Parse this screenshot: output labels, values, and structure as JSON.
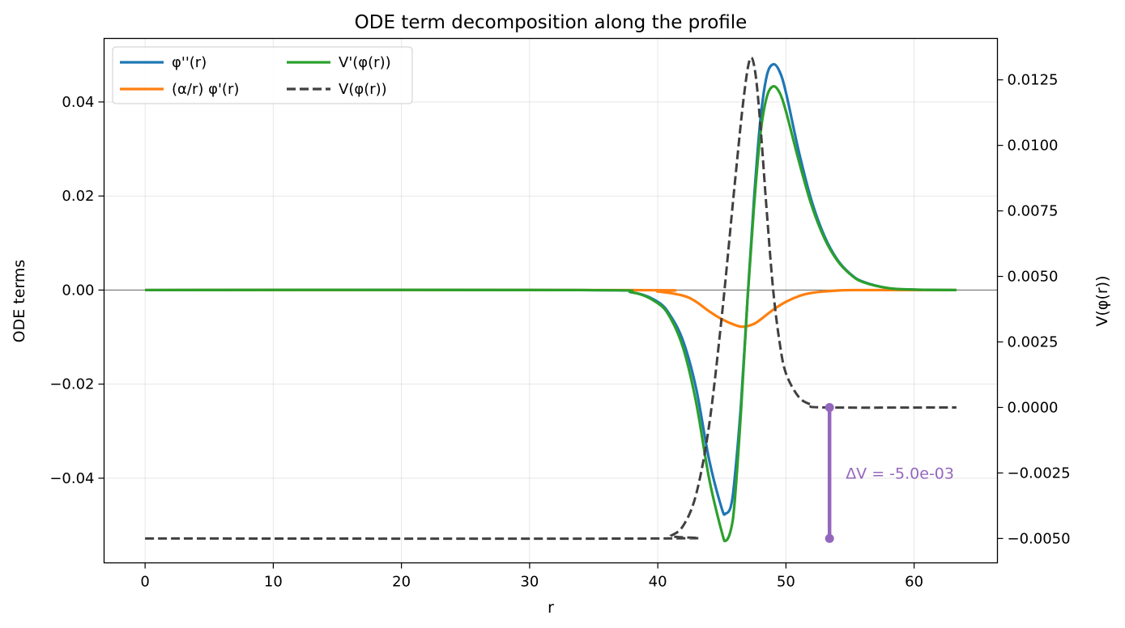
{
  "chart_data": {
    "type": "line",
    "title": "ODE term decomposition along the profile",
    "xlabel": "r",
    "ylabel_left": "ODE terms",
    "ylabel_right": "V(φ(r))",
    "xlim": [
      -3.2,
      66.5
    ],
    "ylim_left": [
      -0.058,
      0.0535
    ],
    "ylim_right": [
      -0.00593,
      0.01408
    ],
    "x_ticks": [
      0,
      10,
      20,
      30,
      40,
      50,
      60
    ],
    "x_tick_labels": [
      "0",
      "10",
      "20",
      "30",
      "40",
      "50",
      "60"
    ],
    "y_left_ticks": [
      0.04,
      0.02,
      0.0,
      -0.02,
      -0.04
    ],
    "y_left_tick_labels": [
      "0.04",
      "0.02",
      "0.00",
      "−0.02",
      "−0.04"
    ],
    "y_right_ticks": [
      0.0125,
      0.01,
      0.0075,
      0.005,
      0.0025,
      0.0,
      -0.0025,
      -0.005
    ],
    "y_right_tick_labels": [
      "0.0125",
      "0.0100",
      "0.0075",
      "0.0050",
      "0.0025",
      "0.0000",
      "−0.0025",
      "−0.0050"
    ],
    "grid": true,
    "legend_position": "top-left",
    "legend_columns": 2,
    "series": [
      {
        "name": "φ''(r)",
        "axis": "left",
        "color": "#1f77b4",
        "style": "solid",
        "points": [
          [
            0,
            0
          ],
          [
            34,
            0
          ],
          [
            38,
            -0.0005
          ],
          [
            40,
            -0.0025
          ],
          [
            41,
            -0.0055
          ],
          [
            42,
            -0.011
          ],
          [
            43,
            -0.021
          ],
          [
            44,
            -0.036
          ],
          [
            45,
            -0.0465
          ],
          [
            45.3,
            -0.0475
          ],
          [
            45.7,
            -0.046
          ],
          [
            46,
            -0.04
          ],
          [
            46.5,
            -0.024
          ],
          [
            47,
            -0.002
          ],
          [
            47.5,
            0.019
          ],
          [
            48,
            0.036
          ],
          [
            48.5,
            0.0455
          ],
          [
            49,
            0.048
          ],
          [
            49.5,
            0.0465
          ],
          [
            50,
            0.042
          ],
          [
            51,
            0.0295
          ],
          [
            52,
            0.019
          ],
          [
            53,
            0.0115
          ],
          [
            54,
            0.0065
          ],
          [
            55,
            0.0035
          ],
          [
            56,
            0.0018
          ],
          [
            58,
            0.0004
          ],
          [
            60,
            0.0001
          ],
          [
            63.3,
            0
          ]
        ]
      },
      {
        "name": "(α/r) φ'(r)",
        "axis": "left",
        "color": "#ff7f0e",
        "style": "solid",
        "points": [
          [
            0,
            0
          ],
          [
            38,
            0
          ],
          [
            40,
            -0.0003
          ],
          [
            42,
            -0.0012
          ],
          [
            43,
            -0.0025
          ],
          [
            44,
            -0.0045
          ],
          [
            45,
            -0.0062
          ],
          [
            46,
            -0.0074
          ],
          [
            46.7,
            -0.0078
          ],
          [
            47.5,
            -0.0072
          ],
          [
            48,
            -0.0063
          ],
          [
            49,
            -0.0042
          ],
          [
            50,
            -0.0025
          ],
          [
            51,
            -0.0013
          ],
          [
            52,
            -0.0006
          ],
          [
            54,
            -0.0001
          ],
          [
            56,
            0
          ],
          [
            63.3,
            0
          ]
        ]
      },
      {
        "name": "V'(φ(r))",
        "axis": "left",
        "color": "#2ca02c",
        "style": "solid",
        "points": [
          [
            0,
            0
          ],
          [
            34,
            0
          ],
          [
            38,
            -0.0005
          ],
          [
            40,
            -0.0028
          ],
          [
            41,
            -0.006
          ],
          [
            42,
            -0.0125
          ],
          [
            43,
            -0.024
          ],
          [
            44,
            -0.04
          ],
          [
            45,
            -0.0515
          ],
          [
            45.3,
            -0.0533
          ],
          [
            45.7,
            -0.051
          ],
          [
            46,
            -0.045
          ],
          [
            46.5,
            -0.0255
          ],
          [
            47,
            -0.002
          ],
          [
            47.5,
            0.0175
          ],
          [
            48,
            0.033
          ],
          [
            48.5,
            0.041
          ],
          [
            49,
            0.0433
          ],
          [
            49.5,
            0.042
          ],
          [
            50,
            0.038
          ],
          [
            51,
            0.0275
          ],
          [
            52,
            0.018
          ],
          [
            53,
            0.011
          ],
          [
            54,
            0.0063
          ],
          [
            55,
            0.0034
          ],
          [
            56,
            0.0017
          ],
          [
            58,
            0.0004
          ],
          [
            60,
            0.0001
          ],
          [
            63.3,
            0
          ]
        ]
      },
      {
        "name": "V(φ(r))",
        "axis": "right",
        "color": "#404040",
        "style": "dashed",
        "points": [
          [
            0,
            -0.005
          ],
          [
            40,
            -0.005
          ],
          [
            41,
            -0.0049
          ],
          [
            42,
            -0.0045
          ],
          [
            43,
            -0.0033
          ],
          [
            44,
            -0.0007
          ],
          [
            45,
            0.0035
          ],
          [
            46,
            0.0085
          ],
          [
            46.7,
            0.0118
          ],
          [
            47.2,
            0.0133
          ],
          [
            47.6,
            0.0128
          ],
          [
            48,
            0.0108
          ],
          [
            48.5,
            0.0075
          ],
          [
            49,
            0.0045
          ],
          [
            49.5,
            0.0025
          ],
          [
            50,
            0.0013
          ],
          [
            51,
            0.0004
          ],
          [
            52,
            0.0001
          ],
          [
            53,
            0
          ],
          [
            63.3,
            0
          ]
        ]
      }
    ],
    "annotation": {
      "text": "ΔV = -5.0e-03",
      "color": "#9467bd",
      "x": 53.4,
      "y_from": -0.005,
      "y_to": 0.0
    }
  }
}
